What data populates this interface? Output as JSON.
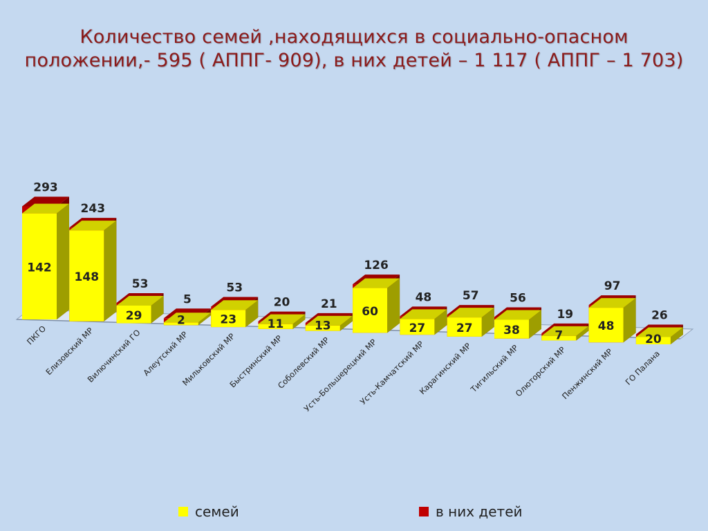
{
  "title": {
    "line1": "Количество семей ,находящихся в социально-опасном",
    "line2": "положении,- 595 ( АППГ- 909), в них детей – 1 117 ( АППГ – 1 703)"
  },
  "colors": {
    "families": "#ffff00",
    "children": "#c00000",
    "title": "#8b1a1a"
  },
  "chart_data": {
    "type": "bar",
    "stacked": true,
    "three_d": true,
    "categories": [
      "ПКГО",
      "Елизовский МР",
      "Вилючинский ГО",
      "Алеутский МР",
      "Мильковский МР",
      "Быстринский МР",
      "Соболевский МР",
      "Усть-Большерецкий МР",
      "Усть-Камчатский МР",
      "Карагинский МР",
      "Тигильский МР",
      "Олюторский МР",
      "Пенжинский МР",
      "ГО Палана"
    ],
    "series": [
      {
        "name": "семей",
        "values": [
          142,
          148,
          29,
          2,
          23,
          11,
          13,
          60,
          27,
          27,
          38,
          7,
          48,
          20
        ]
      },
      {
        "name": "в них детей",
        "values": [
          293,
          243,
          53,
          5,
          53,
          20,
          21,
          126,
          48,
          57,
          56,
          19,
          97,
          26
        ]
      }
    ],
    "legend_position": "bottom",
    "grid": false
  }
}
